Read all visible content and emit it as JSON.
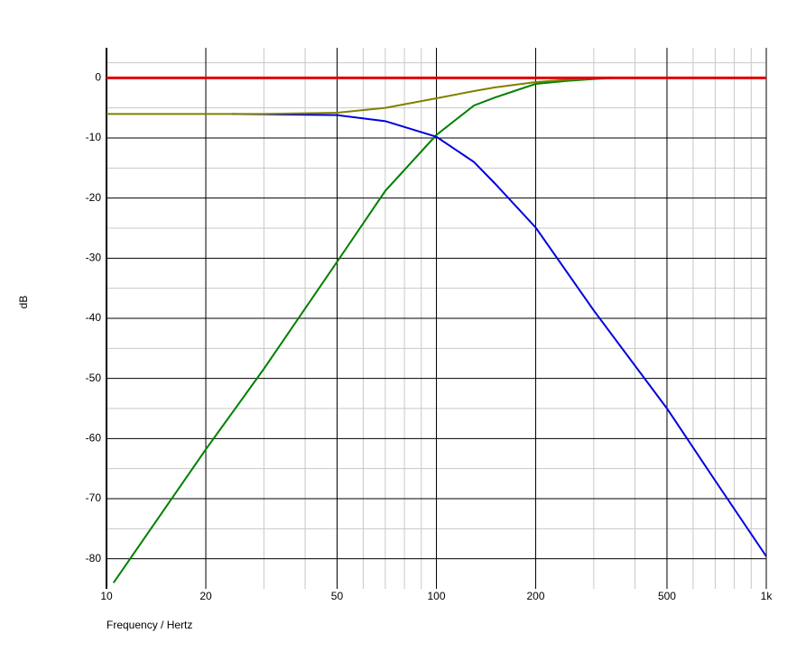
{
  "chart_data": {
    "type": "line",
    "x_label": "Frequency / Hertz",
    "y_label": "dB",
    "log_x": true,
    "grid": true,
    "xlim": [
      10,
      1000
    ],
    "ylim": [
      -85,
      5
    ],
    "xticks": [
      10,
      20,
      50,
      100,
      200,
      500,
      {
        "value": 1000,
        "label": "1k"
      }
    ],
    "yticks": [
      0,
      -10,
      -20,
      -30,
      -40,
      -50,
      -60,
      -70,
      -80
    ],
    "series": [
      {
        "color": "#008000",
        "x": [
          10.5,
          20,
          30,
          50,
          70,
          100,
          130,
          150,
          200,
          250,
          300,
          350
        ],
        "values": [
          -84,
          -61.8,
          -48.4,
          -30.6,
          -18.8,
          -9.5,
          -4.6,
          -3.3,
          -1.0,
          -0.5,
          -0.2,
          0
        ]
      },
      {
        "color": "#0000dd",
        "x": [
          24,
          50,
          70,
          100,
          130,
          150,
          200,
          300,
          500,
          700,
          1000
        ],
        "values": [
          -6,
          -6.2,
          -7.2,
          -9.8,
          -14,
          -17.5,
          -24.9,
          -38.7,
          -55,
          -67,
          -79.6
        ]
      },
      {
        "color": "#808000",
        "x": [
          10,
          30,
          50,
          70,
          100,
          130,
          150,
          200,
          250,
          330
        ],
        "values": [
          -6,
          -6,
          -5.8,
          -5,
          -3.4,
          -2.2,
          -1.6,
          -0.7,
          -0.3,
          0
        ]
      },
      {
        "color": "#e00000",
        "x": [
          10,
          1000
        ],
        "values": [
          0,
          0
        ]
      }
    ]
  }
}
